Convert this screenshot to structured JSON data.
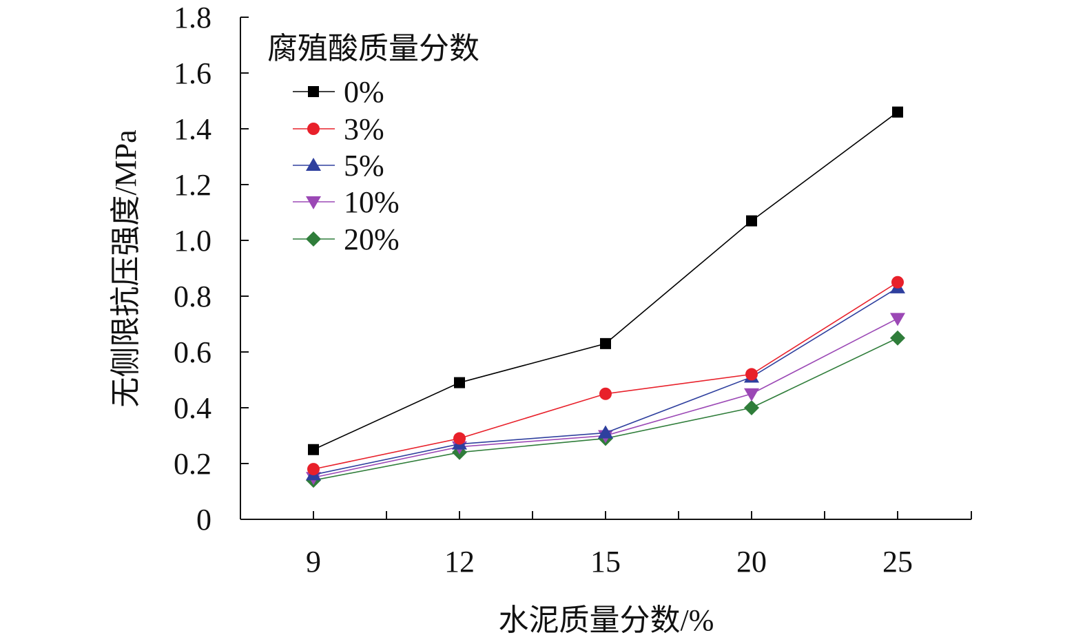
{
  "chart_data": {
    "type": "line",
    "xlabel": "水泥质量分数/%",
    "ylabel": "无侧限抗压强度/MPa",
    "categories": [
      "9",
      "12",
      "15",
      "20",
      "25"
    ],
    "y_ticks": [
      "0",
      "0.2",
      "0.4",
      "0.6",
      "0.8",
      "1.0",
      "1.2",
      "1.4",
      "1.6",
      "1.8"
    ],
    "ylim": [
      0,
      1.8
    ],
    "grid": false,
    "legend": {
      "title": "腐殖酸质量分数",
      "placement": "top-left"
    },
    "series": [
      {
        "name": "0%",
        "marker": "square",
        "color": "#000000",
        "values": [
          0.25,
          0.49,
          0.63,
          1.07,
          1.46
        ]
      },
      {
        "name": "3%",
        "marker": "circle",
        "color": "#e8202a",
        "values": [
          0.18,
          0.29,
          0.45,
          0.52,
          0.85
        ]
      },
      {
        "name": "5%",
        "marker": "triangle-up",
        "color": "#2e3f9e",
        "values": [
          0.16,
          0.27,
          0.31,
          0.51,
          0.83
        ]
      },
      {
        "name": "10%",
        "marker": "triangle-down",
        "color": "#9b48b5",
        "values": [
          0.15,
          0.26,
          0.3,
          0.45,
          0.72
        ]
      },
      {
        "name": "20%",
        "marker": "diamond",
        "color": "#2f7d3a",
        "values": [
          0.14,
          0.24,
          0.29,
          0.4,
          0.65
        ]
      }
    ]
  }
}
